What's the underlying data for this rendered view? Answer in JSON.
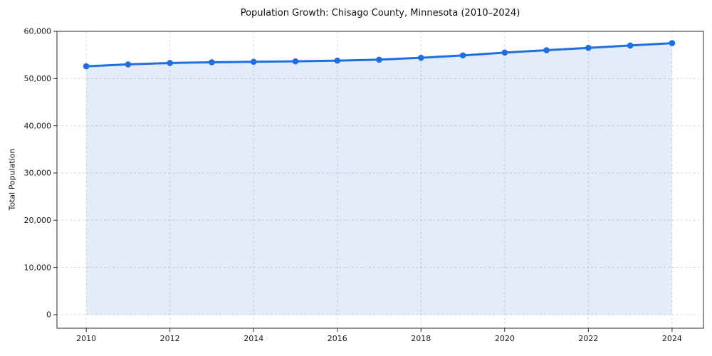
{
  "chart_data": {
    "type": "area",
    "title": "Population Growth: Chisago County, Minnesota (2010–2024)",
    "xlabel": "",
    "ylabel": "Total Population",
    "x": [
      2010,
      2011,
      2012,
      2013,
      2014,
      2015,
      2016,
      2017,
      2018,
      2019,
      2020,
      2021,
      2022,
      2023,
      2024
    ],
    "series": [
      {
        "name": "Total Population",
        "values": [
          52600,
          53000,
          53300,
          53450,
          53550,
          53650,
          53800,
          54000,
          54400,
          54900,
          55500,
          56000,
          56500,
          57000,
          57500
        ]
      }
    ],
    "x_ticks": [
      2010,
      2012,
      2014,
      2016,
      2018,
      2020,
      2022,
      2024
    ],
    "x_tick_labels": [
      "2010",
      "2012",
      "2014",
      "2016",
      "2018",
      "2020",
      "2022",
      "2024"
    ],
    "y_ticks": [
      0,
      10000,
      20000,
      30000,
      40000,
      50000,
      60000
    ],
    "y_tick_labels": [
      "0",
      "10,000",
      "20,000",
      "30,000",
      "40,000",
      "50,000",
      "60,000"
    ],
    "xlim": [
      2009.3,
      2024.75
    ],
    "ylim": [
      -2870,
      60000
    ],
    "grid": true,
    "grid_style": "dashed",
    "legend": false,
    "colors": {
      "line": "#1f6fe0",
      "marker": "#1f6fe0",
      "fill": "rgba(31, 111, 224, 0.13)",
      "grid": "#d7d7d7",
      "spine": "#2a2a2a",
      "tick_text": "#1a1a1a"
    }
  }
}
